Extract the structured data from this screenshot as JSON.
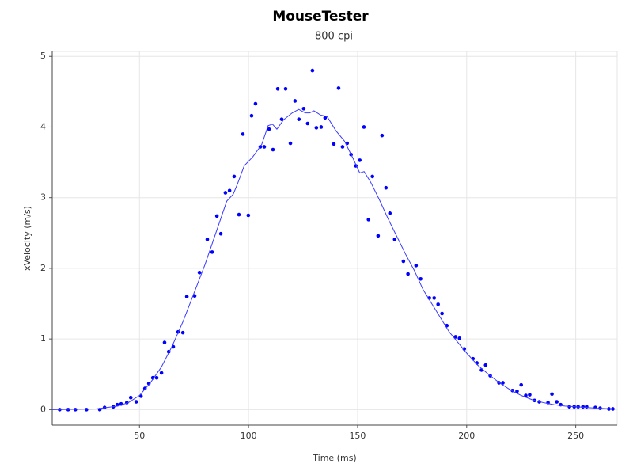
{
  "chart_data": {
    "type": "scatter",
    "title": "MouseTester",
    "subtitle": "800 cpi",
    "x_label": "Time (ms)",
    "y_label": "xVelocity (m/s)",
    "xlim": [
      10,
      269
    ],
    "ylim": [
      -0.22,
      5.07
    ],
    "xticks": [
      50,
      100,
      150,
      200,
      250
    ],
    "yticks": [
      0,
      1,
      2,
      3,
      4,
      5
    ],
    "grid": true,
    "series": [
      {
        "mode": "markers",
        "color": "#0000ff",
        "x": [
          13.4,
          17.3,
          20.6,
          25.7,
          31.8,
          34,
          38,
          39.8,
          41.6,
          44.2,
          46,
          48.5,
          50.7,
          52.5,
          54.3,
          56.1,
          57.9,
          60.1,
          61.5,
          63.4,
          65.5,
          67.7,
          69.9,
          71.7,
          75.3,
          77.5,
          81.1,
          83.3,
          85.5,
          87.3,
          89.4,
          91.3,
          93.4,
          95.6,
          97.4,
          99.9,
          101.4,
          103.2,
          105.4,
          107.2,
          109.4,
          111.2,
          113.4,
          115.2,
          117,
          119.2,
          121.3,
          123.1,
          125.3,
          127.1,
          129.3,
          131.1,
          133.3,
          135.1,
          139.1,
          141.3,
          143.1,
          145.2,
          147,
          149.2,
          151,
          152.9,
          155,
          156.8,
          159.4,
          161.2,
          163,
          164.8,
          167,
          171,
          173.1,
          176.8,
          178.9,
          182.9,
          185.1,
          186.9,
          188.7,
          190.9,
          194.9,
          196.7,
          198.9,
          202.9,
          204.7,
          206.8,
          208.7,
          210.8,
          214.8,
          216.6,
          221,
          223.1,
          225,
          227.1,
          228.9,
          231.1,
          233.3,
          237.3,
          239.1,
          241.3,
          243.1,
          247.1,
          249.3,
          251.1,
          253.3,
          255,
          259,
          261.2,
          265.2,
          267
        ],
        "values": [
          0,
          0,
          0,
          0,
          0,
          0.03,
          0.04,
          0.07,
          0.08,
          0.1,
          0.17,
          0.11,
          0.19,
          0.3,
          0.37,
          0.45,
          0.45,
          0.52,
          0.95,
          0.82,
          0.89,
          1.1,
          1.09,
          1.6,
          1.61,
          1.94,
          2.41,
          2.23,
          2.74,
          2.49,
          3.07,
          3.1,
          3.3,
          2.76,
          3.9,
          2.75,
          4.16,
          4.33,
          3.72,
          3.72,
          3.97,
          3.68,
          4.54,
          4.11,
          4.54,
          3.77,
          4.37,
          4.11,
          4.26,
          4.05,
          4.8,
          3.99,
          4,
          4.13,
          3.76,
          4.55,
          3.72,
          3.77,
          3.61,
          3.45,
          3.53,
          4,
          2.69,
          3.3,
          2.46,
          3.88,
          3.14,
          2.78,
          2.41,
          2.1,
          1.92,
          2.04,
          1.85,
          1.58,
          1.58,
          1.49,
          1.36,
          1.19,
          1.03,
          1.01,
          0.86,
          0.72,
          0.66,
          0.56,
          0.63,
          0.48,
          0.38,
          0.38,
          0.27,
          0.26,
          0.35,
          0.2,
          0.21,
          0.13,
          0.11,
          0.1,
          0.22,
          0.11,
          0.07,
          0.04,
          0.04,
          0.04,
          0.04,
          0.04,
          0.03,
          0.02,
          0.01,
          0.01
        ]
      },
      {
        "mode": "line",
        "color": "#3a3aff",
        "x": [
          10,
          30,
          40,
          45,
          50,
          55,
          60,
          65,
          70,
          75,
          80,
          85,
          90,
          93,
          95,
          98,
          102,
          106,
          109,
          111,
          113,
          116,
          120,
          123,
          126,
          128,
          130,
          133,
          136,
          140,
          144,
          148,
          151,
          153,
          156,
          160,
          164,
          168,
          172,
          176,
          180,
          184,
          188,
          192,
          196,
          200,
          205,
          210,
          215,
          220,
          225,
          230,
          235,
          240,
          245,
          250,
          260,
          268
        ],
        "values": [
          0,
          0.01,
          0.05,
          0.1,
          0.2,
          0.38,
          0.6,
          0.9,
          1.25,
          1.65,
          2.05,
          2.5,
          2.95,
          3.05,
          3.2,
          3.45,
          3.58,
          3.75,
          4.02,
          4.04,
          3.97,
          4.1,
          4.2,
          4.25,
          4.2,
          4.2,
          4.23,
          4.17,
          4.15,
          3.95,
          3.8,
          3.55,
          3.35,
          3.37,
          3.22,
          2.97,
          2.7,
          2.45,
          2.2,
          1.97,
          1.7,
          1.5,
          1.3,
          1.1,
          0.95,
          0.8,
          0.63,
          0.5,
          0.38,
          0.28,
          0.2,
          0.14,
          0.1,
          0.07,
          0.05,
          0.04,
          0.02,
          0.01
        ]
      }
    ]
  }
}
